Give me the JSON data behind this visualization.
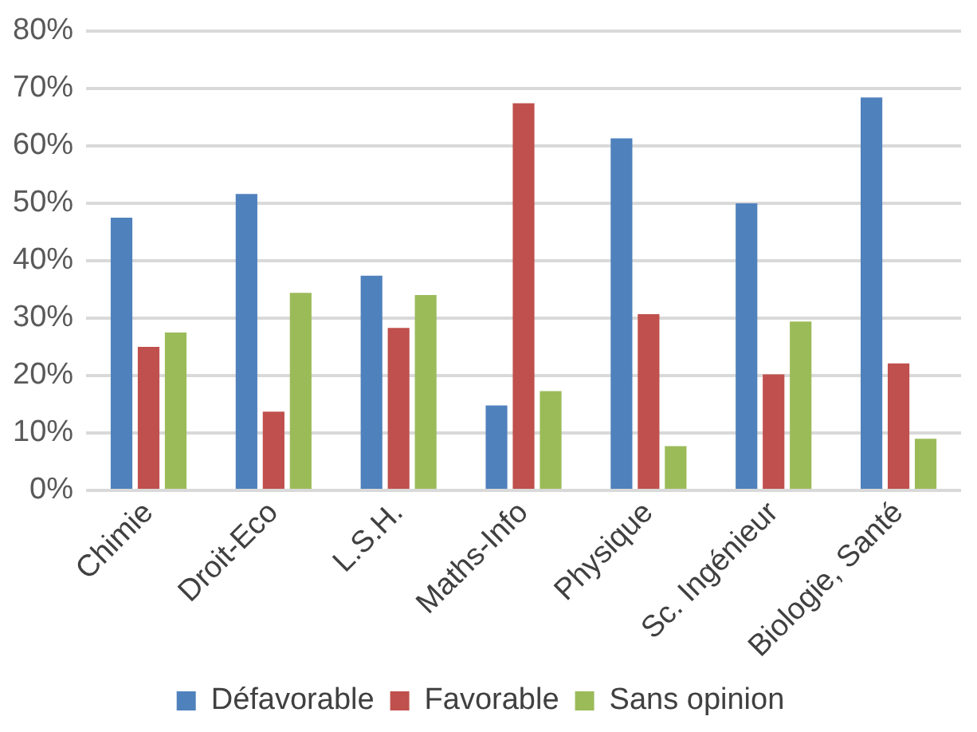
{
  "chart_data": {
    "type": "bar",
    "categories": [
      "Chimie",
      "Droit-Eco",
      "L.S.H.",
      "Maths-Info",
      "Physique",
      "Sc. Ingénieur",
      "Biologie, Santé"
    ],
    "series": [
      {
        "name": "Défavorable",
        "color": "#4f81bd",
        "values": [
          47.5,
          51.6,
          37.4,
          14.8,
          61.3,
          50,
          68.4
        ]
      },
      {
        "name": "Favorable",
        "color": "#c0504d",
        "values": [
          25,
          13.7,
          28.3,
          67.4,
          30.7,
          20.2,
          22.1
        ]
      },
      {
        "name": "Sans opinion",
        "color": "#9bbb59",
        "values": [
          27.5,
          34.4,
          34,
          17.3,
          7.7,
          29.4,
          9
        ]
      }
    ],
    "ylim": [
      0,
      80
    ],
    "yticks": [
      {
        "value": 0,
        "label": "0%"
      },
      {
        "value": 10,
        "label": "10%"
      },
      {
        "value": 20,
        "label": "20%"
      },
      {
        "value": 30,
        "label": "30%"
      },
      {
        "value": 40,
        "label": "40%"
      },
      {
        "value": 50,
        "label": "50%"
      },
      {
        "value": 60,
        "label": "60%"
      },
      {
        "value": 70,
        "label": "70%"
      },
      {
        "value": 80,
        "label": "80%"
      }
    ],
    "grid": "y",
    "legend": "bottom"
  }
}
